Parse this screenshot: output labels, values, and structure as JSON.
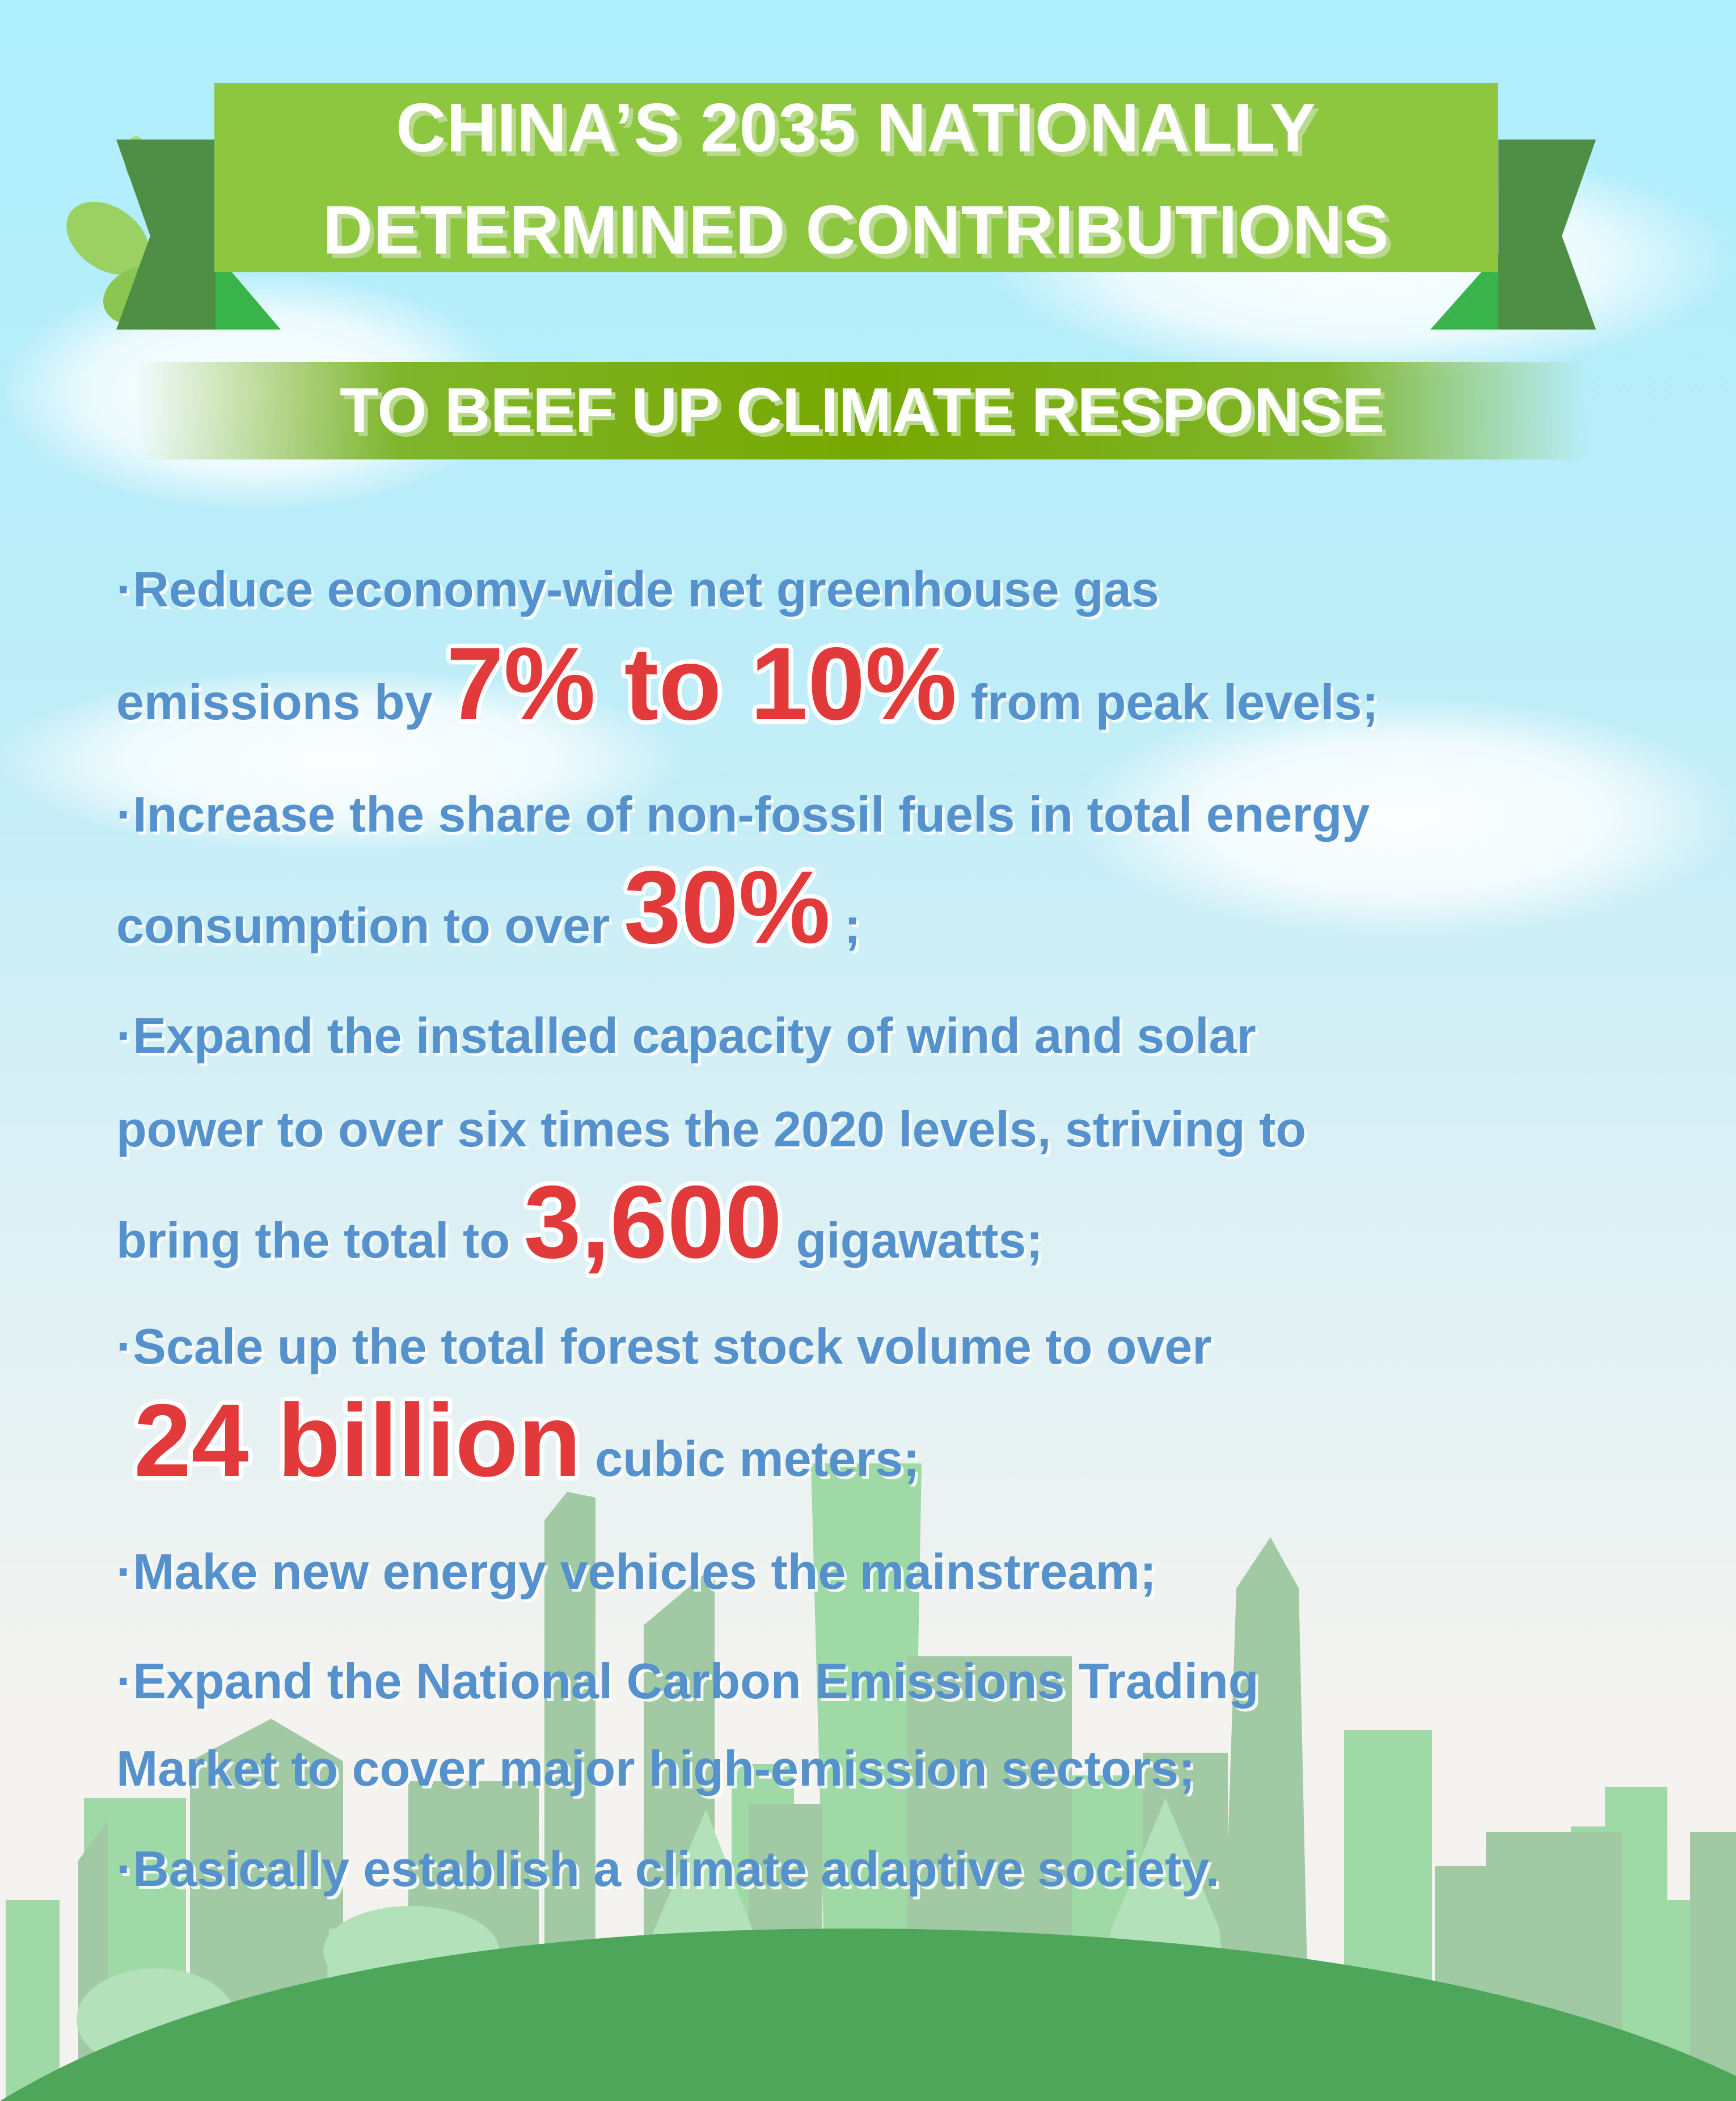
{
  "header": {
    "title_lines": [
      "CHINA’S 2035 NATIONALLY",
      "DETERMINED CONTRIBUTIONS"
    ],
    "subtitle": "TO BEEF UP CLIMATE RESPONSE"
  },
  "colors": {
    "sky_top": "#aeeefd",
    "banner_green": "#8dc63f",
    "ribbon_dark_green": "#4f8f45",
    "ribbon_light_green": "#38b44a",
    "subtitle_bar_green": "#77a800",
    "body_text_blue": "#5591cc",
    "highlight_red": "#e23a3a",
    "hill_green": "#4ea65b",
    "skyline_green": "#9fd9a5"
  },
  "bullets": [
    {
      "lines": [
        [
          {
            "text": "·Reduce economy-wide net greenhouse gas"
          }
        ],
        [
          {
            "text": "emissions by "
          },
          {
            "text": "7% to 10%",
            "hl": true
          },
          {
            "text": " from peak levels;"
          }
        ]
      ]
    },
    {
      "lines": [
        [
          {
            "text": "·Increase the share of non-fossil fuels in total energy"
          }
        ],
        [
          {
            "text": "consumption to over "
          },
          {
            "text": "30%",
            "hl": true
          },
          {
            "text": " ;"
          }
        ]
      ]
    },
    {
      "lines": [
        [
          {
            "text": "·Expand the installed capacity of wind and solar"
          }
        ],
        [
          {
            "text": "power to over six times the 2020 levels, striving to"
          }
        ],
        [
          {
            "text": "bring the total to "
          },
          {
            "text": "3,600",
            "hl": true
          },
          {
            "text": " gigawatts;"
          }
        ]
      ]
    },
    {
      "lines": [
        [
          {
            "text": "·Scale up the total forest stock volume to over"
          }
        ],
        [
          {
            "text": "24 billion",
            "hl": true
          },
          {
            "text": " cubic meters;"
          }
        ]
      ]
    },
    {
      "lines": [
        [
          {
            "text": "·Make new energy vehicles the mainstream;"
          }
        ]
      ]
    },
    {
      "lines": [
        [
          {
            "text": "·Expand the National Carbon Emissions Trading"
          }
        ],
        [
          {
            "text": "Market to cover major high-emission sectors;"
          }
        ]
      ]
    },
    {
      "lines": [
        [
          {
            "text": "·Basically establish a climate adaptive society."
          }
        ]
      ]
    }
  ]
}
